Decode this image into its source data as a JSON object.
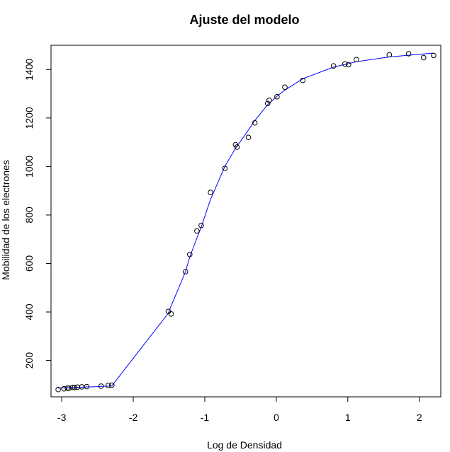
{
  "chart_data": {
    "type": "scatter",
    "title": "Ajuste del modelo",
    "xlabel": "Log de Densidad",
    "ylabel": "Mobilidad de los electrones",
    "xlim": [
      -3.15,
      2.3
    ],
    "ylim": [
      50,
      1500
    ],
    "x_ticks": [
      -3,
      -2,
      -1,
      0,
      1,
      2
    ],
    "x_tick_labels": [
      "-3",
      "-2",
      "-1",
      "0",
      "1",
      "2"
    ],
    "y_ticks": [
      200,
      400,
      600,
      800,
      1000,
      1200,
      1400
    ],
    "y_tick_labels": [
      "200",
      "400",
      "600",
      "800",
      "1000",
      "1200",
      "1400"
    ],
    "grid": false,
    "legend": "none",
    "colors": {
      "points": "#000000",
      "fit_line": "#0000ff"
    },
    "series": [
      {
        "kind": "points",
        "x": [
          -3.05,
          -2.97,
          -2.92,
          -2.9,
          -2.85,
          -2.82,
          -2.78,
          -2.72,
          -2.65,
          -2.45,
          -2.35,
          -2.3,
          -1.51,
          -1.47,
          -1.27,
          -1.21,
          -1.11,
          -1.05,
          -0.92,
          -0.72,
          -0.57,
          -0.55,
          -0.39,
          -0.3,
          -0.12,
          -0.1,
          0.01,
          0.12,
          0.37,
          0.8,
          0.96,
          1.01,
          1.12,
          1.58,
          1.85,
          2.06,
          2.2
        ],
        "y": [
          80,
          83,
          86,
          86,
          89,
          89,
          90,
          91,
          92,
          94,
          97,
          98,
          402,
          392,
          566,
          637,
          734,
          757,
          893,
          992,
          1090,
          1080,
          1120,
          1180,
          1260,
          1273,
          1288,
          1327,
          1355,
          1415,
          1423,
          1420,
          1441,
          1461,
          1465,
          1449,
          1458
        ]
      },
      {
        "kind": "line",
        "x": [
          -3.05,
          -2.9,
          -2.7,
          -2.5,
          -2.3,
          -1.51,
          -1.47,
          -1.27,
          -1.21,
          -1.11,
          -1.05,
          -0.92,
          -0.72,
          -0.57,
          -0.39,
          -0.3,
          -0.12,
          0.01,
          0.12,
          0.37,
          0.8,
          1.12,
          1.58,
          2.2
        ],
        "y": [
          86,
          88,
          90,
          92,
          95,
          395,
          425,
          566,
          627,
          705,
          750,
          864,
          1000,
          1075,
          1150,
          1190,
          1255,
          1290,
          1315,
          1362,
          1410,
          1432,
          1452,
          1468
        ]
      }
    ]
  }
}
